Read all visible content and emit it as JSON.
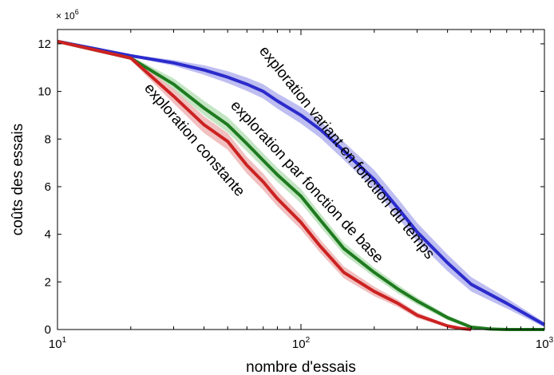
{
  "chart_data": {
    "type": "line",
    "x_scale": "log",
    "xlim": [
      10,
      1000
    ],
    "ylim": [
      0,
      12.6
    ],
    "grid": false,
    "legend": "none",
    "xlabel": "nombre d'essais",
    "ylabel": "coûts des essais",
    "y_multiplier_label": "× 10",
    "y_multiplier_exp": "6",
    "x_ticks": [
      {
        "value": 10,
        "base": "10",
        "exp": "1"
      },
      {
        "value": 100,
        "base": "10",
        "exp": "2"
      },
      {
        "value": 1000,
        "base": "10",
        "exp": "3"
      }
    ],
    "y_ticks": [
      0,
      2,
      4,
      6,
      8,
      10,
      12
    ],
    "series": [
      {
        "name": "exploration variant en fonction du temps",
        "color": "#2b2bcc",
        "band_color": "#b3b3ee",
        "x": [
          10,
          20,
          30,
          40,
          50,
          60,
          70,
          80,
          100,
          120,
          150,
          200,
          250,
          300,
          400,
          500,
          700,
          1000
        ],
        "values": [
          12.1,
          11.5,
          11.2,
          10.9,
          10.6,
          10.3,
          10.0,
          9.6,
          9.0,
          8.4,
          7.5,
          6.3,
          5.1,
          4.1,
          2.8,
          1.9,
          1.1,
          0.2
        ],
        "band": [
          0.0,
          0.05,
          0.12,
          0.2,
          0.25,
          0.28,
          0.3,
          0.32,
          0.35,
          0.35,
          0.38,
          0.4,
          0.4,
          0.38,
          0.35,
          0.3,
          0.22,
          0.1
        ]
      },
      {
        "name": "exploration par fonction de base",
        "color": "#1f7a1f",
        "band_color": "#b8e0b8",
        "x": [
          10,
          20,
          30,
          40,
          50,
          60,
          70,
          80,
          100,
          120,
          150,
          200,
          250,
          300,
          400,
          500,
          600,
          700,
          1000
        ],
        "values": [
          12.1,
          11.4,
          10.3,
          9.3,
          8.6,
          7.8,
          7.1,
          6.5,
          5.6,
          4.6,
          3.4,
          2.4,
          1.7,
          1.2,
          0.5,
          0.1,
          0.02,
          0.0,
          0.0
        ],
        "band": [
          0.0,
          0.08,
          0.25,
          0.3,
          0.32,
          0.32,
          0.3,
          0.3,
          0.3,
          0.28,
          0.25,
          0.2,
          0.18,
          0.15,
          0.1,
          0.05,
          0.02,
          0.0,
          0.0
        ]
      },
      {
        "name": "exploration constante",
        "color": "#cc2222",
        "band_color": "#eeb5b5",
        "x": [
          10,
          20,
          30,
          40,
          50,
          60,
          70,
          80,
          100,
          120,
          150,
          200,
          250,
          300,
          400,
          450,
          500
        ],
        "values": [
          12.1,
          11.4,
          9.8,
          8.6,
          7.9,
          6.9,
          6.2,
          5.5,
          4.5,
          3.5,
          2.4,
          1.6,
          1.1,
          0.6,
          0.15,
          0.05,
          0.0
        ],
        "band": [
          0.0,
          0.08,
          0.3,
          0.35,
          0.35,
          0.35,
          0.35,
          0.32,
          0.3,
          0.28,
          0.25,
          0.2,
          0.15,
          0.12,
          0.05,
          0.03,
          0.0
        ]
      }
    ]
  }
}
